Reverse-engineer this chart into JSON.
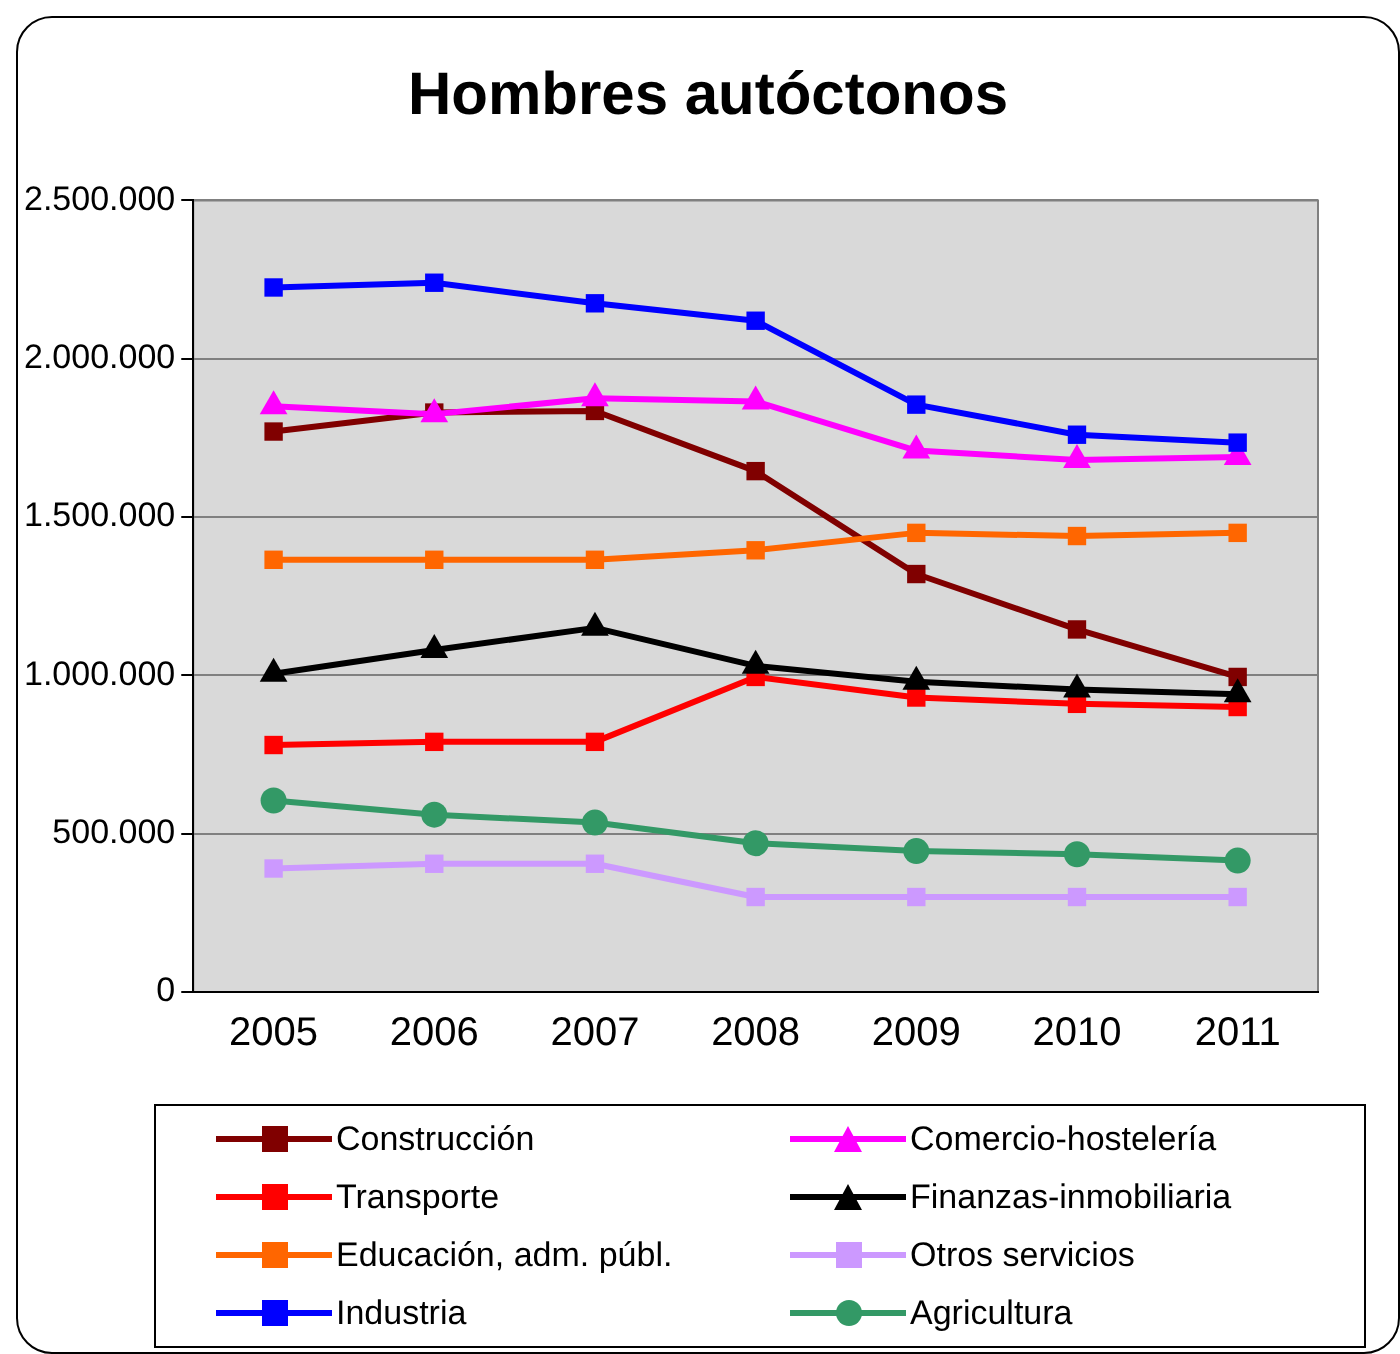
{
  "chart_data": {
    "type": "line",
    "title": "Hombres autóctonos",
    "categories": [
      "2005",
      "2006",
      "2007",
      "2008",
      "2009",
      "2010",
      "2011"
    ],
    "ylim": [
      0,
      2500000
    ],
    "yticks": [
      0,
      {
        "value": 500000,
        "label": "500.000"
      },
      {
        "value": 1000000,
        "label": "1.000.000"
      },
      {
        "value": 1500000,
        "label": "1.500.000"
      },
      {
        "value": 2000000,
        "label": "2.000.000"
      },
      {
        "value": 2500000,
        "label": "2.500.000"
      }
    ],
    "grid": "y",
    "legend": "bottom",
    "line_style": "solid",
    "series": [
      {
        "name": "Construcción",
        "color": "#800000",
        "marker": "square",
        "values": [
          1770000,
          1830000,
          1835000,
          1645000,
          1320000,
          1145000,
          995000
        ]
      },
      {
        "name": "Comercio-hostelería",
        "color": "#ff00ff",
        "marker": "triangle",
        "values": [
          1850000,
          1825000,
          1875000,
          1865000,
          1710000,
          1680000,
          1690000
        ]
      },
      {
        "name": "Transporte",
        "color": "#ff0000",
        "marker": "square",
        "values": [
          780000,
          790000,
          790000,
          995000,
          930000,
          910000,
          900000
        ]
      },
      {
        "name": "Finanzas-inmobiliaria",
        "color": "#000000",
        "marker": "triangle",
        "values": [
          1005000,
          1080000,
          1150000,
          1030000,
          980000,
          955000,
          940000
        ]
      },
      {
        "name": "Educación, adm. públ.",
        "color": "#ff6600",
        "marker": "square",
        "values": [
          1365000,
          1365000,
          1365000,
          1395000,
          1450000,
          1440000,
          1450000
        ]
      },
      {
        "name": "Otros servicios",
        "color": "#cc99ff",
        "marker": "square",
        "values": [
          390000,
          405000,
          405000,
          300000,
          300000,
          300000,
          300000
        ]
      },
      {
        "name": "Industria",
        "color": "#0000ff",
        "marker": "square",
        "values": [
          2225000,
          2240000,
          2175000,
          2120000,
          1855000,
          1760000,
          1735000
        ]
      },
      {
        "name": "Agricultura",
        "color": "#339966",
        "marker": "circle",
        "values": [
          605000,
          560000,
          535000,
          470000,
          445000,
          435000,
          415000
        ]
      }
    ]
  }
}
